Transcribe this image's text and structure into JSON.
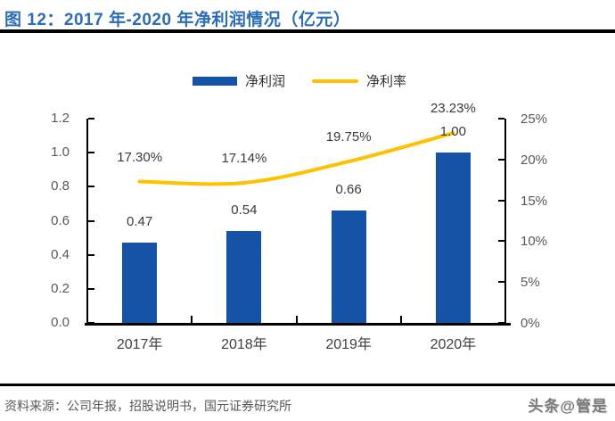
{
  "figure": {
    "title": "图 12：2017 年-2020 年净利润情况（亿元）",
    "source": "资料来源：公司年报，招股说明书，国元证券研究所",
    "watermark": "头条@管是"
  },
  "legend": [
    {
      "label": "净利润",
      "type": "bar"
    },
    {
      "label": "净利率",
      "type": "line"
    }
  ],
  "colors": {
    "title": "#2D6DB6",
    "bar": "#1553A6",
    "line": "#FFC000",
    "axis": "#000000",
    "tick_label": "#595959",
    "data_label": "#3A3A3A"
  },
  "chart_data": {
    "type": "bar+line-combo",
    "title": "图 12：2017 年-2020 年净利润情况（亿元）",
    "categories": [
      "2017年",
      "2018年",
      "2019年",
      "2020年"
    ],
    "series": [
      {
        "name": "净利润",
        "type": "bar",
        "axis": "left",
        "values": [
          0.47,
          0.54,
          0.66,
          1.0
        ],
        "labels": [
          "0.47",
          "0.54",
          "0.66",
          "1.00"
        ],
        "color": "#1553A6"
      },
      {
        "name": "净利率",
        "type": "line",
        "axis": "right",
        "values": [
          17.3,
          17.14,
          19.75,
          23.23
        ],
        "labels": [
          "17.30%",
          "17.14%",
          "19.75%",
          "23.23%"
        ],
        "color": "#FFC000"
      }
    ],
    "left_axis": {
      "min": 0.0,
      "max": 1.2,
      "ticks": [
        "0.0",
        "0.2",
        "0.4",
        "0.6",
        "0.8",
        "1.0",
        "1.2"
      ]
    },
    "right_axis": {
      "min": 0,
      "max": 25,
      "ticks": [
        "0%",
        "5%",
        "10%",
        "15%",
        "20%",
        "25%"
      ]
    },
    "grid": false,
    "legend_position": "top-center"
  }
}
